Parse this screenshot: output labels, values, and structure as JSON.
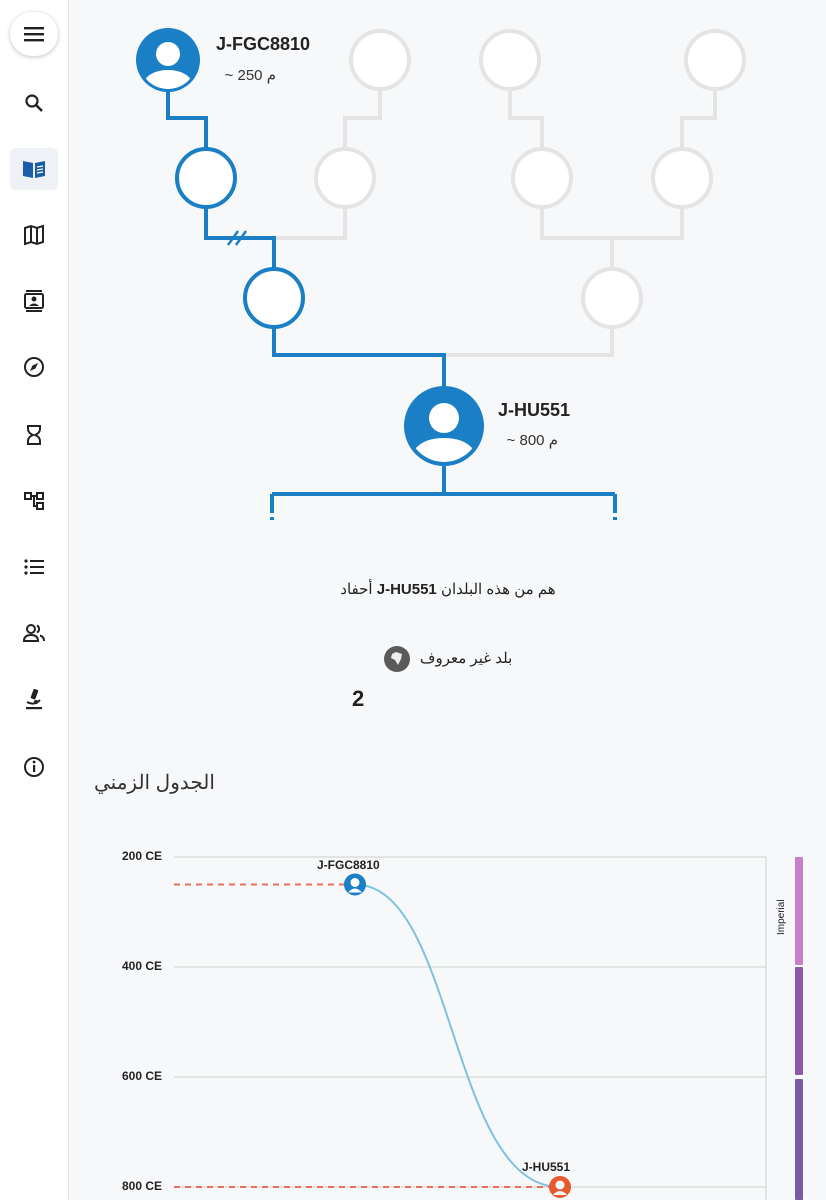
{
  "sidebar": {
    "items": [
      {
        "icon": "search-icon"
      },
      {
        "icon": "book-icon",
        "active": true
      },
      {
        "icon": "map-icon"
      },
      {
        "icon": "profile-card-icon"
      },
      {
        "icon": "compass-icon"
      },
      {
        "icon": "hourglass-icon"
      },
      {
        "icon": "tree-icon"
      },
      {
        "icon": "list-icon"
      },
      {
        "icon": "people-icon"
      },
      {
        "icon": "microscope-icon"
      },
      {
        "icon": "info-icon"
      }
    ]
  },
  "tree": {
    "ancestor": {
      "name": "J-FGC8810",
      "age": "م 250 ~"
    },
    "current": {
      "name": "J-HU551",
      "age": "م 800 ~"
    },
    "caption_pre": "هم من هذه البلدان",
    "caption_name": "J-HU551",
    "caption_post": "أحفاد",
    "country_label": "بلد غير معروف",
    "country_count": "2"
  },
  "timeline": {
    "title": "الجدول الزمني",
    "axis": [
      "200 CE",
      "400 CE",
      "600 CE",
      "800 CE"
    ],
    "points": [
      {
        "name": "J-FGC8810",
        "year": 250
      },
      {
        "name": "J-HU551",
        "year": 800
      }
    ],
    "era_label": "Imperial",
    "colors": {
      "line": "#7fc1df",
      "dash": "#e8705a",
      "ancestor": "#1a7fc4",
      "current": "#e85a2c",
      "era_top": "#c77fc7",
      "era_mid": "#8e5aa8",
      "era_bottom": "#7a5aa0"
    }
  }
}
